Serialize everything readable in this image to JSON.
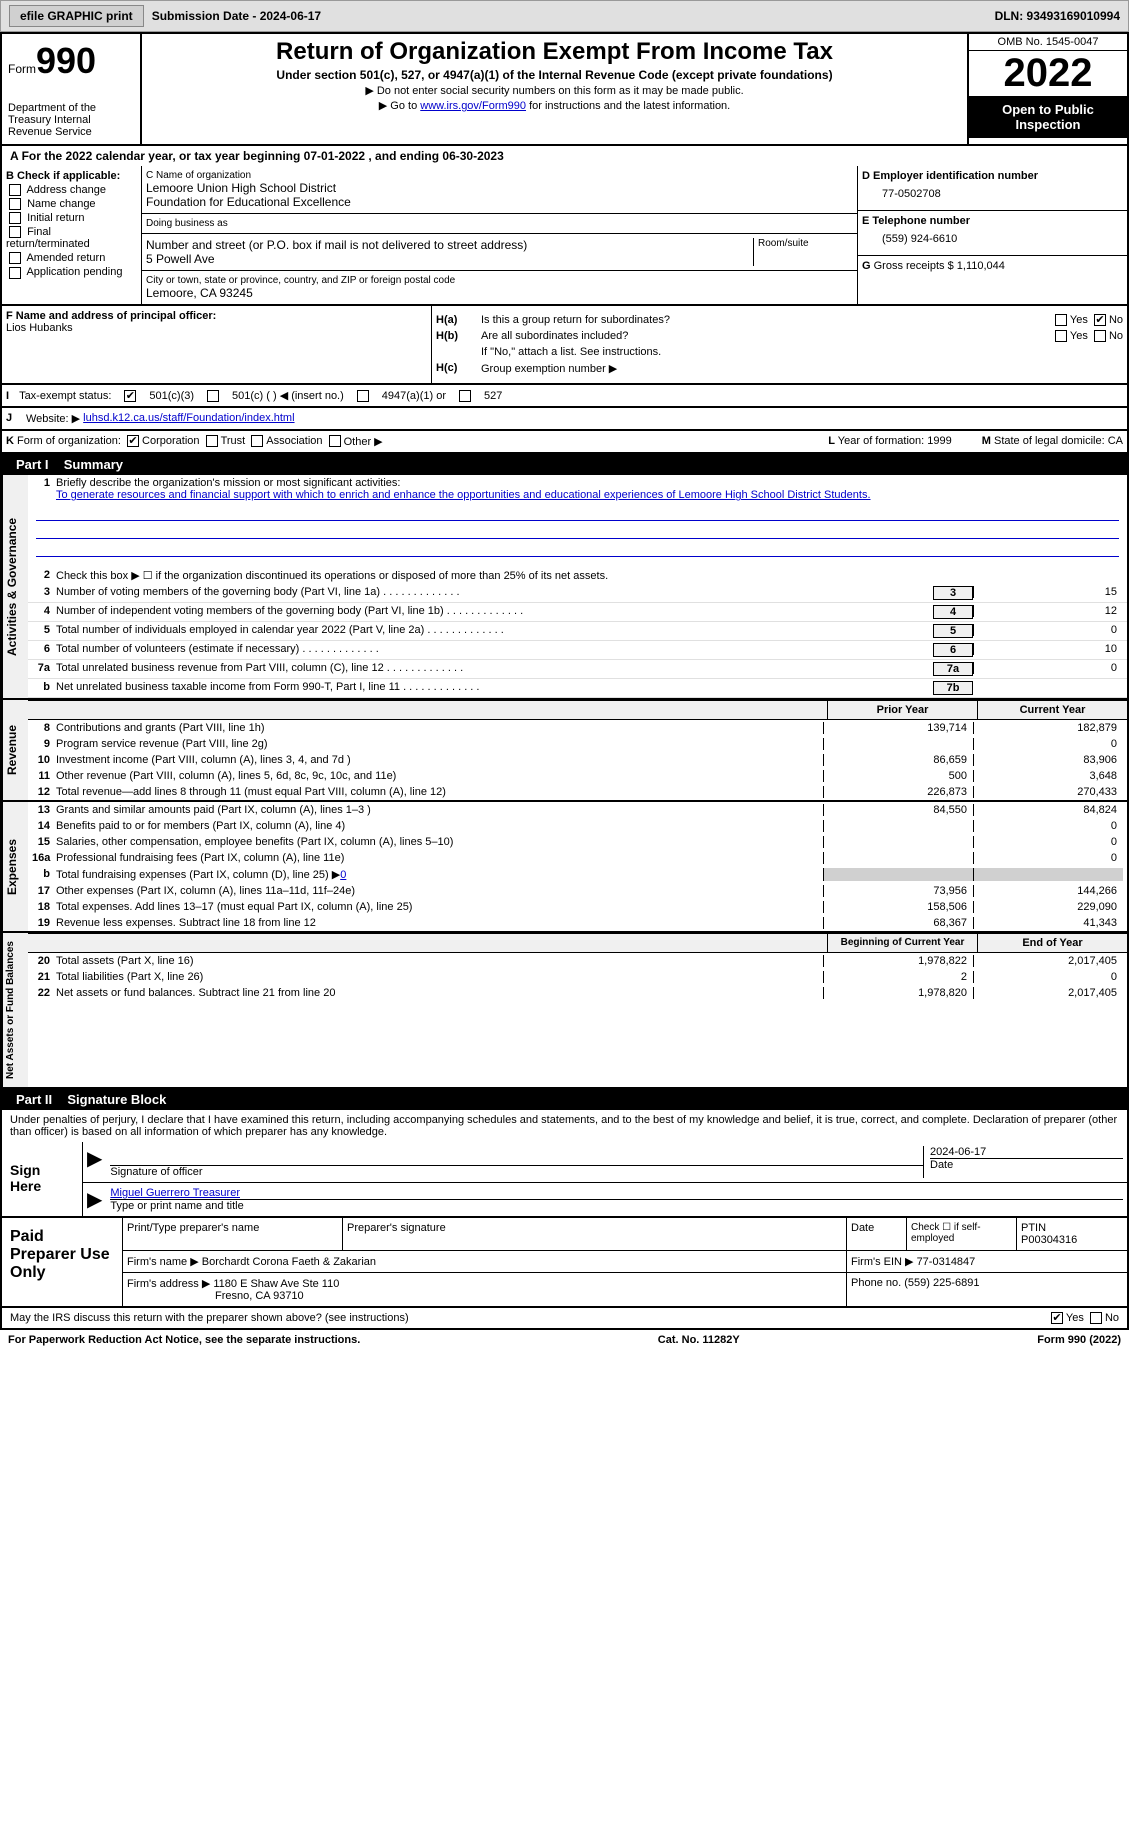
{
  "top": {
    "efile": "efile GRAPHIC print",
    "submission": "Submission Date - 2024-06-17",
    "dln": "DLN: 93493169010994"
  },
  "header": {
    "form": "Form",
    "form_no": "990",
    "dept": "Department of the Treasury\nInternal Revenue Service",
    "title": "Return of Organization Exempt From Income Tax",
    "sub1": "Under section 501(c), 527, or 4947(a)(1) of the Internal Revenue Code (except private foundations)",
    "sub2": "▶ Do not enter social security numbers on this form as it may be made public.",
    "sub3_prefix": "▶ Go to ",
    "sub3_link": "www.irs.gov/Form990",
    "sub3_suffix": " for instructions and the latest information.",
    "omb": "OMB No. 1545-0047",
    "year": "2022",
    "open": "Open to Public Inspection"
  },
  "a": "For the 2022 calendar year, or tax year beginning 07-01-2022    , and ending 06-30-2023",
  "b": {
    "hdr": "B Check if applicable:",
    "opts": [
      "Address change",
      "Name change",
      "Initial return",
      "Final return/terminated",
      "Amended return",
      "Application pending"
    ]
  },
  "c": {
    "name_lbl": "C Name of organization",
    "name1": "Lemoore Union High School District",
    "name2": "Foundation for Educational Excellence",
    "dba": "Doing business as",
    "addr_lbl": "Number and street (or P.O. box if mail is not delivered to street address)",
    "room_lbl": "Room/suite",
    "addr": "5 Powell Ave",
    "city_lbl": "City or town, state or province, country, and ZIP or foreign postal code",
    "city": "Lemoore, CA  93245"
  },
  "d": {
    "lbl": "D Employer identification number",
    "val": "77-0502708"
  },
  "e": {
    "lbl": "E Telephone number",
    "val": "(559) 924-6610"
  },
  "g": {
    "lbl": "G",
    "txt": "Gross receipts $",
    "val": "1,110,044"
  },
  "f": {
    "lbl": "F Name and address of principal officer:",
    "name": "Lios Hubanks"
  },
  "h": {
    "a_lbl": "H(a)",
    "a_txt": "Is this a group return for subordinates?",
    "b_lbl": "H(b)",
    "b_txt": "Are all subordinates included?",
    "b_note": "If \"No,\" attach a list. See instructions.",
    "c_lbl": "H(c)",
    "c_txt": "Group exemption number ▶"
  },
  "i": {
    "lbl": "I",
    "txt": "Tax-exempt status:",
    "opts": [
      "501(c)(3)",
      "501(c) (  ) ◀ (insert no.)",
      "4947(a)(1) or",
      "527"
    ]
  },
  "j": {
    "lbl": "J",
    "txt": "Website: ▶",
    "val": "luhsd.k12.ca.us/staff/Foundation/index.html"
  },
  "k": {
    "lbl": "K",
    "txt": "Form of organization:",
    "opts": [
      "Corporation",
      "Trust",
      "Association",
      "Other ▶"
    ],
    "l_lbl": "L",
    "l_txt": "Year of formation: 1999",
    "m_lbl": "M",
    "m_txt": "State of legal domicile: CA"
  },
  "part1": {
    "hdr": "Part I",
    "title": "Summary"
  },
  "gov": {
    "side": "Activities & Governance",
    "l1_num": "1",
    "l1": "Briefly describe the organization's mission or most significant activities:",
    "l1_val": "To generate resources and financial support with which to enrich and enhance the opportunities and educational experiences of Lemoore High School District Students.",
    "l2_num": "2",
    "l2": "Check this box ▶ ☐ if the organization discontinued its operations or disposed of more than 25% of its net assets.",
    "lines": [
      {
        "n": "3",
        "d": "Number of voting members of the governing body (Part VI, line 1a)",
        "box": "3",
        "v": "15"
      },
      {
        "n": "4",
        "d": "Number of independent voting members of the governing body (Part VI, line 1b)",
        "box": "4",
        "v": "12"
      },
      {
        "n": "5",
        "d": "Total number of individuals employed in calendar year 2022 (Part V, line 2a)",
        "box": "5",
        "v": "0"
      },
      {
        "n": "6",
        "d": "Total number of volunteers (estimate if necessary)",
        "box": "6",
        "v": "10"
      },
      {
        "n": "7a",
        "d": "Total unrelated business revenue from Part VIII, column (C), line 12",
        "box": "7a",
        "v": "0"
      },
      {
        "n": "b",
        "d": "Net unrelated business taxable income from Form 990-T, Part I, line 11",
        "box": "7b",
        "v": ""
      }
    ]
  },
  "rev": {
    "side": "Revenue",
    "hdr_prior": "Prior Year",
    "hdr_curr": "Current Year",
    "lines": [
      {
        "n": "8",
        "d": "Contributions and grants (Part VIII, line 1h)",
        "p": "139,714",
        "c": "182,879"
      },
      {
        "n": "9",
        "d": "Program service revenue (Part VIII, line 2g)",
        "p": "",
        "c": "0"
      },
      {
        "n": "10",
        "d": "Investment income (Part VIII, column (A), lines 3, 4, and 7d )",
        "p": "86,659",
        "c": "83,906"
      },
      {
        "n": "11",
        "d": "Other revenue (Part VIII, column (A), lines 5, 6d, 8c, 9c, 10c, and 11e)",
        "p": "500",
        "c": "3,648"
      },
      {
        "n": "12",
        "d": "Total revenue—add lines 8 through 11 (must equal Part VIII, column (A), line 12)",
        "p": "226,873",
        "c": "270,433"
      }
    ]
  },
  "exp": {
    "side": "Expenses",
    "lines": [
      {
        "n": "13",
        "d": "Grants and similar amounts paid (Part IX, column (A), lines 1–3 )",
        "p": "84,550",
        "c": "84,824"
      },
      {
        "n": "14",
        "d": "Benefits paid to or for members (Part IX, column (A), line 4)",
        "p": "",
        "c": "0"
      },
      {
        "n": "15",
        "d": "Salaries, other compensation, employee benefits (Part IX, column (A), lines 5–10)",
        "p": "",
        "c": "0"
      },
      {
        "n": "16a",
        "d": "Professional fundraising fees (Part IX, column (A), line 11e)",
        "p": "",
        "c": "0"
      }
    ],
    "l16b": {
      "n": "b",
      "d": "Total fundraising expenses (Part IX, column (D), line 25) ▶",
      "v": "0"
    },
    "lines2": [
      {
        "n": "17",
        "d": "Other expenses (Part IX, column (A), lines 11a–11d, 11f–24e)",
        "p": "73,956",
        "c": "144,266"
      },
      {
        "n": "18",
        "d": "Total expenses. Add lines 13–17 (must equal Part IX, column (A), line 25)",
        "p": "158,506",
        "c": "229,090"
      },
      {
        "n": "19",
        "d": "Revenue less expenses. Subtract line 18 from line 12",
        "p": "68,367",
        "c": "41,343"
      }
    ]
  },
  "net": {
    "side": "Net Assets or Fund Balances",
    "hdr_prior": "Beginning of Current Year",
    "hdr_curr": "End of Year",
    "lines": [
      {
        "n": "20",
        "d": "Total assets (Part X, line 16)",
        "p": "1,978,822",
        "c": "2,017,405"
      },
      {
        "n": "21",
        "d": "Total liabilities (Part X, line 26)",
        "p": "2",
        "c": "0"
      },
      {
        "n": "22",
        "d": "Net assets or fund balances. Subtract line 21 from line 20",
        "p": "1,978,820",
        "c": "2,017,405"
      }
    ]
  },
  "part2": {
    "hdr": "Part II",
    "title": "Signature Block"
  },
  "sig": {
    "decl": "Under penalties of perjury, I declare that I have examined this return, including accompanying schedules and statements, and to the best of my knowledge and belief, it is true, correct, and complete. Declaration of preparer (other than officer) is based on all information of which preparer has any knowledge.",
    "sign_here": "Sign Here",
    "sig_officer": "Signature of officer",
    "date": "Date",
    "date_val": "2024-06-17",
    "name": "Miguel Guerrero Treasurer",
    "name_lbl": "Type or print name and title"
  },
  "prep": {
    "title": "Paid Preparer Use Only",
    "print_lbl": "Print/Type preparer's name",
    "sig_lbl": "Preparer's signature",
    "date_lbl": "Date",
    "check_lbl": "Check ☐ if self-employed",
    "ptin_lbl": "PTIN",
    "ptin": "P00304316",
    "firm_name_lbl": "Firm's name    ▶",
    "firm_name": "Borchardt Corona Faeth & Zakarian",
    "firm_ein_lbl": "Firm's EIN ▶",
    "firm_ein": "77-0314847",
    "firm_addr_lbl": "Firm's address ▶",
    "firm_addr1": "1180 E Shaw Ave Ste 110",
    "firm_addr2": "Fresno, CA  93710",
    "phone_lbl": "Phone no.",
    "phone": "(559) 225-6891"
  },
  "footer": {
    "may": "May the IRS discuss this return with the preparer shown above? (see instructions)",
    "notice": "For Paperwork Reduction Act Notice, see the separate instructions.",
    "cat": "Cat. No. 11282Y",
    "form": "Form 990 (2022)"
  }
}
